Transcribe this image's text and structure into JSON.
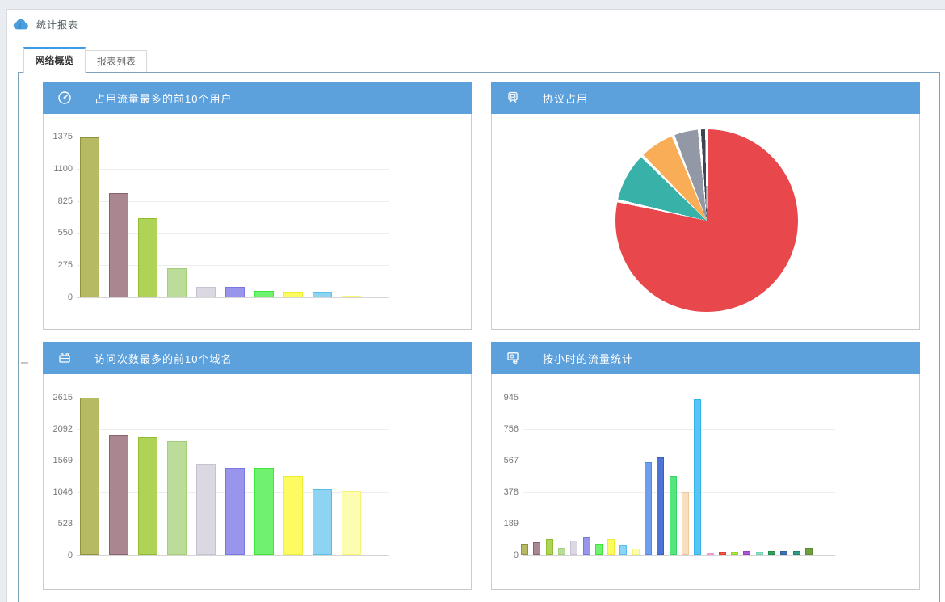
{
  "page": {
    "title": "统计报表"
  },
  "tabs": [
    {
      "label": "网络概览",
      "active": true
    },
    {
      "label": "报表列表",
      "active": false
    }
  ],
  "colors": {
    "page_background": "#e9edf1",
    "tab_accent": "#3d9be9",
    "panel_header_blue": "#5ca0dc",
    "panel_border_blue": "#abd6f2",
    "content_border": "#7ea2bc",
    "axis_label": "#777777",
    "gridline": "#ededed",
    "zero_line": "#d6d6d6"
  },
  "panels": [
    {
      "title": "占用流量最多的前10个用户",
      "icon": "gauge-icon"
    },
    {
      "title": "协议占用",
      "icon": "device-icon"
    },
    {
      "title": "访问次数最多的前10个域名",
      "icon": "briefcase-icon"
    },
    {
      "title": "按小时的流量统计",
      "icon": "monitor-gear-icon"
    }
  ],
  "chart_data": [
    {
      "type": "bar",
      "title": "占用流量最多的前10个用户",
      "values": [
        1370,
        890,
        680,
        250,
        90,
        90,
        55,
        48,
        48,
        15
      ],
      "yticks": [
        0,
        275,
        550,
        825,
        1100,
        1375
      ],
      "ylim": [
        0,
        1510
      ],
      "xlabel": "",
      "ylabel": "",
      "grid": true,
      "x_tick_labels_shown": false,
      "bar_fills": [
        "#b6ba62",
        "#aa8690",
        "#aed356",
        "#bcdd99",
        "#dcd8e2",
        "#9995ec",
        "#70f170",
        "#fcfc62",
        "#8ed4f2",
        "#fdfdb2"
      ],
      "bar_borders": [
        "#8f9340",
        "#8a626e",
        "#90bd2f",
        "#a2cf78",
        "#c7c2d3",
        "#7a76e3",
        "#3ce43c",
        "#eded35",
        "#58bfec",
        "#f5f57c"
      ]
    },
    {
      "type": "pie",
      "title": "协议占用",
      "slices": [
        {
          "value": 78.5,
          "color": "#e8474b"
        },
        {
          "value": 9.0,
          "color": "#38b2a8"
        },
        {
          "value": 6.5,
          "color": "#f9ad56"
        },
        {
          "value": 4.7,
          "color": "#9298a6"
        },
        {
          "value": 1.3,
          "color": "#3e4555"
        }
      ],
      "start_angle_deg": 0,
      "direction": "clockwise",
      "legend": "none",
      "slice_gap_color": "#ffffff"
    },
    {
      "type": "bar",
      "title": "访问次数最多的前10个域名",
      "values": [
        2615,
        2000,
        1955,
        1890,
        1520,
        1445,
        1450,
        1320,
        1100,
        1060
      ],
      "yticks": [
        0,
        523,
        1046,
        1569,
        2092,
        2615
      ],
      "ylim": [
        0,
        2875
      ],
      "xlabel": "",
      "ylabel": "",
      "grid": true,
      "x_tick_labels_shown": false,
      "bar_fills": [
        "#b6ba62",
        "#aa8690",
        "#aed356",
        "#bcdd99",
        "#dcd8e2",
        "#9995ec",
        "#70f170",
        "#fcfc62",
        "#8ed4f2",
        "#fdfdb2"
      ],
      "bar_borders": [
        "#8f9340",
        "#8a626e",
        "#90bd2f",
        "#a2cf78",
        "#c7c2d3",
        "#7a76e3",
        "#3ce43c",
        "#eded35",
        "#58bfec",
        "#f5f57c"
      ]
    },
    {
      "type": "bar",
      "title": "按小时的流量统计",
      "values": [
        68,
        77,
        97,
        44,
        87,
        107,
        68,
        97,
        58,
        39,
        557,
        586,
        475,
        378,
        935,
        15,
        20,
        20,
        26,
        20,
        26,
        26,
        26,
        42
      ],
      "yticks": [
        0,
        189,
        378,
        567,
        756,
        945
      ],
      "ylim": [
        0,
        1040
      ],
      "xlabel": "",
      "ylabel": "",
      "grid": true,
      "x_tick_labels_shown": false,
      "bar_fills": [
        "#b6ba62",
        "#aa8690",
        "#aed356",
        "#bcdd99",
        "#dcd8e2",
        "#9995ec",
        "#70f170",
        "#fcfc62",
        "#8ed4f2",
        "#fdfdb2",
        "#6d9ef0",
        "#4d72d8",
        "#55e57f",
        "#f7dfbf",
        "#56c5f3",
        "#f8b9e6",
        "#f25a4c",
        "#a9e93f",
        "#ae52d9",
        "#92e3c6",
        "#2fa35e",
        "#4070b4",
        "#2e9c80",
        "#6fa040"
      ],
      "bar_borders": [
        "#8f9340",
        "#8a626e",
        "#90bd2f",
        "#a2cf78",
        "#c7c2d3",
        "#7a76e3",
        "#3ce43c",
        "#eded35",
        "#58bfec",
        "#f5f57c",
        "#4f86e8",
        "#3a5fc4",
        "#35d563",
        "#ecc89c",
        "#35b3e8",
        "#f096d8",
        "#e33f30",
        "#92d622",
        "#9a3cc6",
        "#72d4b0",
        "#238a4c",
        "#315f9e",
        "#23836a",
        "#5c8c32"
      ]
    }
  ]
}
